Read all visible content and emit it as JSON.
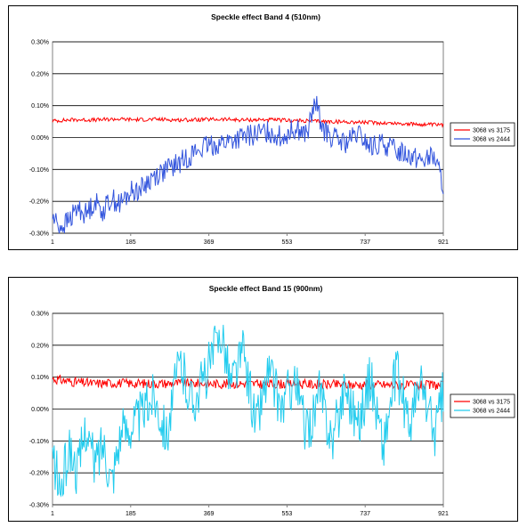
{
  "chart_data": [
    {
      "type": "line",
      "title": "Speckle effect Band 4 (510nm)",
      "x_ticks": [
        "1",
        "185",
        "369",
        "553",
        "737",
        "921"
      ],
      "y_ticks": [
        "0.30%",
        "0.20%",
        "0.10%",
        "0.00%",
        "-0.10%",
        "-0.20%",
        "-0.30%"
      ],
      "xlim": [
        1,
        921
      ],
      "ylim": [
        -0.3,
        0.3
      ],
      "y_unit": "%",
      "grid": true,
      "legend_position": "right",
      "series": [
        {
          "name": "3068 vs 3175",
          "color": "#ff0000",
          "x": [
            1,
            50,
            100,
            150,
            200,
            250,
            300,
            350,
            400,
            450,
            500,
            550,
            600,
            650,
            700,
            750,
            800,
            850,
            900,
            921
          ],
          "values": [
            0.052,
            0.056,
            0.055,
            0.058,
            0.056,
            0.057,
            0.055,
            0.056,
            0.057,
            0.055,
            0.056,
            0.054,
            0.052,
            0.05,
            0.049,
            0.047,
            0.045,
            0.042,
            0.04,
            0.039
          ]
        },
        {
          "name": "3068 vs 2444",
          "color": "#3355dd",
          "x": [
            1,
            20,
            40,
            60,
            80,
            100,
            120,
            140,
            160,
            185,
            210,
            240,
            270,
            300,
            330,
            360,
            390,
            420,
            450,
            480,
            510,
            540,
            570,
            600,
            620,
            640,
            660,
            690,
            720,
            750,
            780,
            810,
            840,
            870,
            900,
            921
          ],
          "values": [
            -0.25,
            -0.28,
            -0.26,
            -0.22,
            -0.24,
            -0.2,
            -0.23,
            -0.19,
            -0.21,
            -0.17,
            -0.16,
            -0.12,
            -0.1,
            -0.08,
            -0.05,
            -0.03,
            -0.02,
            -0.01,
            0.0,
            0.01,
            0.02,
            0.0,
            0.03,
            0.01,
            0.11,
            0.02,
            0.0,
            -0.02,
            0.01,
            -0.03,
            -0.02,
            -0.04,
            -0.05,
            -0.07,
            -0.06,
            -0.15
          ]
        }
      ]
    },
    {
      "type": "line",
      "title": "Speckle effect Band 15 (900nm)",
      "x_ticks": [
        "1",
        "185",
        "369",
        "553",
        "737",
        "921"
      ],
      "y_ticks": [
        "0.30%",
        "0.20%",
        "0.10%",
        "0.00%",
        "-0.10%",
        "-0.20%",
        "-0.30%"
      ],
      "xlim": [
        1,
        921
      ],
      "ylim": [
        -0.3,
        0.3
      ],
      "y_unit": "%",
      "grid": true,
      "legend_position": "right",
      "series": [
        {
          "name": "3068 vs 3175",
          "color": "#ff0000",
          "x": [
            1,
            50,
            100,
            150,
            200,
            250,
            300,
            350,
            400,
            450,
            500,
            550,
            600,
            650,
            700,
            750,
            800,
            850,
            900,
            921
          ],
          "values": [
            0.095,
            0.085,
            0.08,
            0.082,
            0.08,
            0.08,
            0.081,
            0.08,
            0.079,
            0.08,
            0.078,
            0.079,
            0.078,
            0.077,
            0.076,
            0.077,
            0.075,
            0.074,
            0.075,
            0.074
          ]
        },
        {
          "name": "3068 vs 2444",
          "color": "#22ccee",
          "x": [
            1,
            20,
            40,
            60,
            80,
            100,
            120,
            140,
            160,
            185,
            210,
            240,
            270,
            300,
            330,
            360,
            400,
            420,
            450,
            480,
            510,
            540,
            570,
            600,
            630,
            660,
            690,
            720,
            750,
            780,
            810,
            840,
            870,
            900,
            921
          ],
          "values": [
            -0.15,
            -0.26,
            -0.12,
            -0.2,
            -0.05,
            -0.18,
            -0.1,
            -0.22,
            -0.08,
            -0.05,
            -0.02,
            0.05,
            -0.08,
            0.15,
            0.02,
            0.1,
            0.25,
            0.08,
            0.18,
            -0.05,
            0.12,
            0.0,
            0.1,
            -0.08,
            0.05,
            -0.1,
            0.08,
            -0.05,
            0.1,
            -0.12,
            0.12,
            -0.05,
            0.08,
            -0.08,
            0.05
          ]
        }
      ]
    }
  ]
}
